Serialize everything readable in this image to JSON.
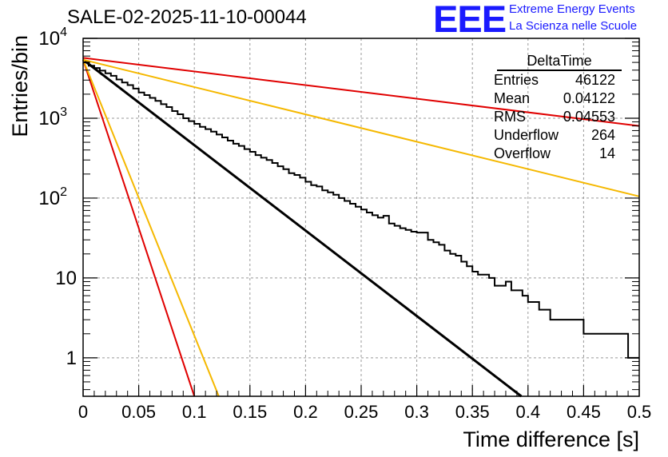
{
  "header": {
    "run_title": "SALE-02-2025-11-10-00044",
    "logo_text": "EEE",
    "org_line1": "Extreme Energy Events",
    "org_line2": "La Scienza nelle Scuole"
  },
  "stats_box": {
    "title": "DeltaTime",
    "rows": [
      {
        "key": "Entries",
        "value": "46122"
      },
      {
        "key": "Mean",
        "value": "0.04122"
      },
      {
        "key": "RMS",
        "value": "0.04553"
      },
      {
        "key": "Underflow",
        "value": "264"
      },
      {
        "key": "Overflow",
        "value": "14"
      }
    ]
  },
  "colors": {
    "histogram": "#000000",
    "fit": "#000000",
    "red_ref": "#e00000",
    "orange_ref": "#f5b800",
    "grid": "#999999"
  },
  "chart_data": {
    "type": "histogram",
    "title": "SALE-02-2025-11-10-00044",
    "xlabel": "Time difference [s]",
    "ylabel": "Entries/bin",
    "xlim": [
      0,
      0.5
    ],
    "ylim": [
      0.33,
      10000
    ],
    "yscale": "log",
    "grid": true,
    "x_ticks": [
      {
        "v": 0,
        "label": "0"
      },
      {
        "v": 0.05,
        "label": "0.05"
      },
      {
        "v": 0.1,
        "label": "0.1"
      },
      {
        "v": 0.15,
        "label": "0.15"
      },
      {
        "v": 0.2,
        "label": "0.2"
      },
      {
        "v": 0.25,
        "label": "0.25"
      },
      {
        "v": 0.3,
        "label": "0.3"
      },
      {
        "v": 0.35,
        "label": "0.35"
      },
      {
        "v": 0.4,
        "label": "0.4"
      },
      {
        "v": 0.45,
        "label": "0.45"
      },
      {
        "v": 0.5,
        "label": "0.5"
      }
    ],
    "y_ticks": [
      {
        "v": 1,
        "base": "1",
        "exp": ""
      },
      {
        "v": 10,
        "base": "10",
        "exp": ""
      },
      {
        "v": 100,
        "base": "10",
        "exp": "2"
      },
      {
        "v": 1000,
        "base": "10",
        "exp": "3"
      },
      {
        "v": 10000,
        "base": "10",
        "exp": "4"
      }
    ],
    "bin_width": 0.005,
    "bin_start": 0,
    "histogram_values": [
      4700,
      3850,
      3150,
      2550,
      2100,
      1720,
      1400,
      1150,
      940,
      770,
      630,
      510,
      420,
      340,
      280,
      230,
      188,
      152,
      128,
      102,
      85,
      68,
      56,
      46,
      38,
      30,
      24,
      20,
      16,
      13,
      11,
      9,
      8,
      7,
      6,
      5,
      4,
      4,
      3,
      3,
      3,
      3,
      2,
      2,
      2,
      2,
      2,
      1,
      1,
      1
    ],
    "histogram_values_alt": [
      5000,
      4550,
      4250,
      3950,
      3650,
      3400,
      3050,
      2800,
      2600,
      2350,
      2100,
      1950,
      1800,
      1650,
      1500,
      1380,
      1230,
      1120,
      1000,
      920,
      850,
      780,
      730,
      680,
      625,
      575,
      525,
      480,
      450,
      410,
      380,
      345,
      320,
      300,
      275,
      250,
      230,
      205,
      195,
      180,
      160,
      145,
      140,
      125,
      118,
      110,
      100,
      92,
      85,
      78,
      72,
      66,
      61,
      57,
      60,
      48,
      45,
      42,
      40,
      38,
      37,
      37,
      30,
      28,
      26,
      22,
      20,
      19,
      16,
      14,
      12,
      11,
      11,
      10,
      8,
      8,
      9,
      7,
      7,
      6,
      5,
      5,
      4,
      4,
      3,
      3,
      3,
      3,
      3,
      3,
      2,
      2,
      2,
      2,
      2,
      2,
      2,
      2,
      1,
      1
    ],
    "series": [
      {
        "name": "fit",
        "type": "exponential",
        "x": [
          0,
          0.394
        ],
        "y": [
          5400,
          0.33
        ]
      },
      {
        "name": "red-steep",
        "type": "exponential",
        "x": [
          0,
          0.1
        ],
        "y": [
          5400,
          0.33
        ]
      },
      {
        "name": "orange-steep",
        "type": "exponential",
        "x": [
          0,
          0.122
        ],
        "y": [
          5400,
          0.33
        ]
      },
      {
        "name": "red-shallow",
        "type": "exponential",
        "x": [
          0,
          0.5
        ],
        "y": [
          5700,
          800
        ]
      },
      {
        "name": "orange-shallow",
        "type": "exponential",
        "x": [
          0,
          0.5
        ],
        "y": [
          5400,
          105
        ]
      }
    ]
  }
}
